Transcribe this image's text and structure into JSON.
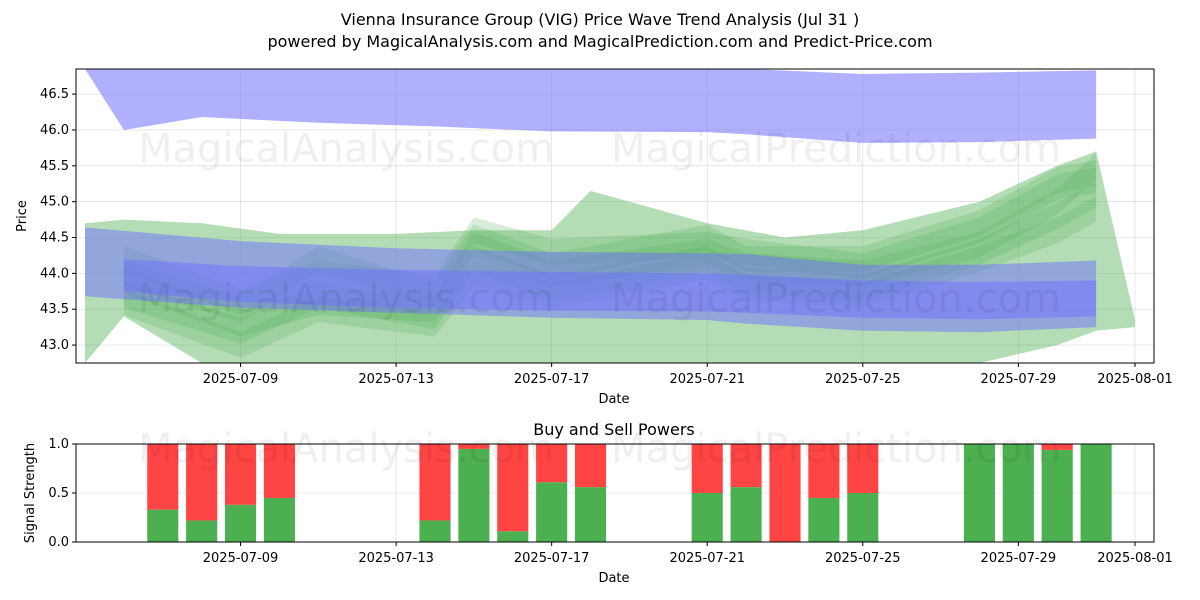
{
  "title_line1": "Vienna Insurance Group (VIG) Price Wave Trend Analysis (Jul 31 )",
  "title_line2": "powered by MagicalAnalysis.com and MagicalPrediction.com and Predict-Price.com",
  "watermarks": [
    "MagicalAnalysis.com",
    "MagicalPrediction.com"
  ],
  "colors": {
    "buy": "#4caf50",
    "sell": "#ff4444",
    "band_blue": "#6f6fff",
    "band_green": "#4caf50"
  },
  "chart_data": [
    {
      "type": "area",
      "xlabel": "Date",
      "ylabel": "Price",
      "ylim": [
        42.75,
        46.85
      ],
      "yticks": [
        43.0,
        43.5,
        44.0,
        44.5,
        45.0,
        45.5,
        46.0,
        46.5
      ],
      "xlim": [
        "2025-07-05",
        "2025-08-01"
      ],
      "xticks": [
        "2025-07-09",
        "2025-07-13",
        "2025-07-17",
        "2025-07-21",
        "2025-07-25",
        "2025-07-29",
        "2025-08-01"
      ],
      "grid": true,
      "blue_bands": [
        {
          "x": [
            "2025-07-05",
            "2025-07-06",
            "2025-07-08",
            "2025-07-11",
            "2025-07-14",
            "2025-07-17",
            "2025-07-21",
            "2025-07-22",
            "2025-07-25",
            "2025-07-28",
            "2025-07-31"
          ],
          "upper": [
            46.9,
            46.9,
            46.88,
            46.88,
            46.87,
            46.87,
            46.86,
            46.86,
            46.78,
            46.8,
            46.83
          ],
          "lower": [
            46.85,
            46.0,
            46.18,
            46.1,
            46.05,
            45.98,
            45.97,
            45.94,
            45.82,
            45.83,
            45.88
          ]
        },
        {
          "x": [
            "2025-07-05",
            "2025-07-09",
            "2025-07-13",
            "2025-07-17",
            "2025-07-21",
            "2025-07-22",
            "2025-07-25",
            "2025-07-28",
            "2025-07-31"
          ],
          "upper": [
            44.64,
            44.45,
            44.35,
            44.3,
            44.28,
            44.27,
            44.12,
            44.12,
            44.18
          ],
          "lower": [
            43.68,
            43.52,
            43.45,
            43.38,
            43.35,
            43.3,
            43.2,
            43.18,
            43.25
          ]
        },
        {
          "x": [
            "2025-07-06",
            "2025-07-09",
            "2025-07-13",
            "2025-07-17",
            "2025-07-21",
            "2025-07-22",
            "2025-07-25",
            "2025-07-28",
            "2025-07-31"
          ],
          "upper": [
            44.2,
            44.1,
            44.05,
            44.02,
            44.0,
            43.98,
            43.9,
            43.88,
            43.9
          ],
          "lower": [
            43.75,
            43.6,
            43.52,
            43.48,
            43.47,
            43.45,
            43.38,
            43.36,
            43.4
          ]
        }
      ],
      "green_waves": [
        {
          "x": [
            "2025-07-06",
            "2025-07-09",
            "2025-07-11",
            "2025-07-14",
            "2025-07-15",
            "2025-07-17",
            "2025-07-21",
            "2025-07-22",
            "2025-07-25",
            "2025-07-28",
            "2025-07-30",
            "2025-07-31"
          ],
          "y": [
            43.9,
            43.3,
            43.6,
            43.5,
            44.4,
            44.0,
            44.3,
            44.1,
            44.0,
            44.4,
            45.0,
            45.5
          ]
        },
        {
          "x": [
            "2025-07-06",
            "2025-07-09",
            "2025-07-11",
            "2025-07-14",
            "2025-07-15",
            "2025-07-17",
            "2025-07-21",
            "2025-07-22",
            "2025-07-25",
            "2025-07-28",
            "2025-07-30",
            "2025-07-31"
          ],
          "y": [
            44.2,
            43.6,
            44.0,
            43.8,
            44.6,
            44.3,
            44.4,
            44.3,
            44.1,
            44.6,
            45.2,
            45.3
          ]
        },
        {
          "x": [
            "2025-07-06",
            "2025-07-09",
            "2025-07-11",
            "2025-07-14",
            "2025-07-15",
            "2025-07-17",
            "2025-07-21",
            "2025-07-22",
            "2025-07-25",
            "2025-07-28",
            "2025-07-30",
            "2025-07-31"
          ],
          "y": [
            43.7,
            43.2,
            43.7,
            43.4,
            44.2,
            43.8,
            44.2,
            43.9,
            43.8,
            44.3,
            44.8,
            45.1
          ]
        },
        {
          "x": [
            "2025-07-06",
            "2025-07-09",
            "2025-07-11",
            "2025-07-14",
            "2025-07-15",
            "2025-07-17",
            "2025-07-21",
            "2025-07-22",
            "2025-07-25",
            "2025-07-28",
            "2025-07-30",
            "2025-07-31"
          ],
          "y": [
            44.0,
            43.5,
            44.2,
            43.7,
            44.5,
            44.1,
            44.5,
            44.2,
            44.2,
            44.7,
            45.3,
            45.4
          ]
        },
        {
          "x": [
            "2025-07-06",
            "2025-07-09",
            "2025-07-11",
            "2025-07-14",
            "2025-07-15",
            "2025-07-17",
            "2025-07-21",
            "2025-07-22",
            "2025-07-25",
            "2025-07-28",
            "2025-07-30",
            "2025-07-31"
          ],
          "y": [
            43.6,
            43.0,
            43.5,
            43.3,
            44.0,
            43.7,
            44.1,
            43.8,
            43.7,
            44.2,
            44.6,
            44.9
          ]
        }
      ],
      "green_envelope": {
        "x": [
          "2025-07-05",
          "2025-07-06",
          "2025-07-08",
          "2025-07-10",
          "2025-07-13",
          "2025-07-15",
          "2025-07-17",
          "2025-07-18",
          "2025-07-21",
          "2025-07-23",
          "2025-07-25",
          "2025-07-28",
          "2025-07-30",
          "2025-07-31",
          "2025-08-01"
        ],
        "upper": [
          44.7,
          44.75,
          44.7,
          44.55,
          44.55,
          44.6,
          44.6,
          45.15,
          44.7,
          44.5,
          44.6,
          45.0,
          45.5,
          45.7,
          43.35
        ],
        "lower": [
          42.75,
          43.4,
          42.75,
          42.75,
          42.75,
          42.75,
          42.75,
          42.75,
          42.75,
          42.75,
          42.75,
          42.75,
          43.0,
          43.2,
          43.25
        ]
      }
    },
    {
      "type": "bar",
      "title": "Buy and Sell Powers",
      "xlabel": "Date",
      "ylabel": "Signal Strength",
      "ylim": [
        0,
        1
      ],
      "yticks": [
        0.0,
        0.5,
        1.0
      ],
      "xlim": [
        "2025-07-05",
        "2025-08-01"
      ],
      "xticks": [
        "2025-07-09",
        "2025-07-13",
        "2025-07-17",
        "2025-07-21",
        "2025-07-25",
        "2025-07-29",
        "2025-08-01"
      ],
      "grid": true,
      "x": [
        "2025-07-07",
        "2025-07-08",
        "2025-07-09",
        "2025-07-10",
        "2025-07-14",
        "2025-07-15",
        "2025-07-16",
        "2025-07-17",
        "2025-07-18",
        "2025-07-21",
        "2025-07-22",
        "2025-07-23",
        "2025-07-24",
        "2025-07-25",
        "2025-07-28",
        "2025-07-29",
        "2025-07-30",
        "2025-07-31"
      ],
      "series": [
        {
          "name": "Buy",
          "values": [
            0.33,
            0.22,
            0.38,
            0.45,
            0.22,
            0.95,
            0.11,
            0.61,
            0.56,
            0.5,
            0.56,
            0.0,
            0.45,
            0.5,
            1.0,
            1.0,
            0.94,
            1.0
          ]
        },
        {
          "name": "Sell",
          "values": [
            0.67,
            0.78,
            0.62,
            0.55,
            0.78,
            0.05,
            0.89,
            0.39,
            0.44,
            0.5,
            0.44,
            1.0,
            0.55,
            0.5,
            0.0,
            0.0,
            0.06,
            0.0
          ]
        }
      ]
    }
  ]
}
